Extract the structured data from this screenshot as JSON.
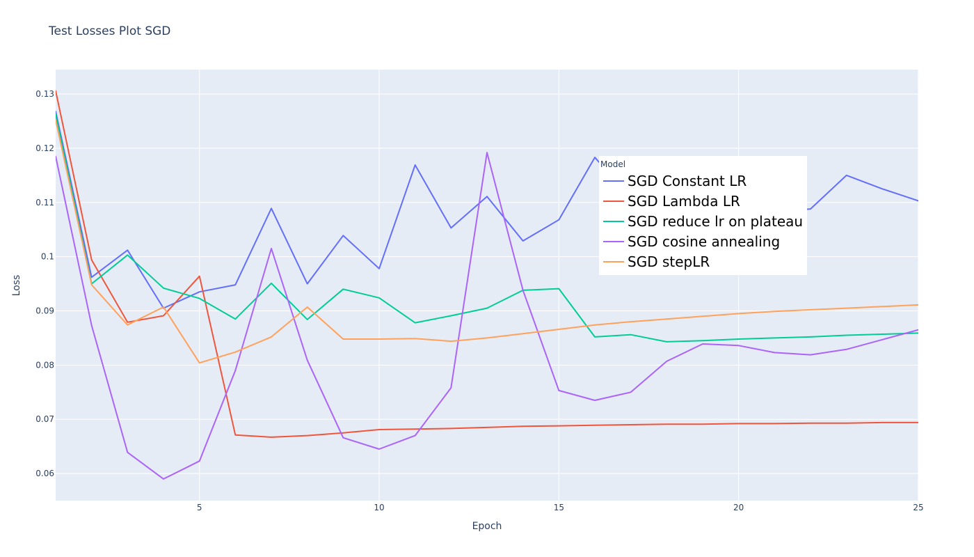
{
  "chart_data": {
    "type": "line",
    "title": "Test Losses Plot SGD",
    "xlabel": "Epoch",
    "ylabel": "Loss",
    "xlim": [
      1,
      25
    ],
    "ylim": [
      0.055,
      0.1345
    ],
    "x_ticks": [
      5,
      10,
      15,
      20,
      25
    ],
    "x_tick_labels": [
      "5",
      "10",
      "15",
      "20",
      "25"
    ],
    "y_ticks": [
      0.06,
      0.07,
      0.08,
      0.09,
      0.1,
      0.11,
      0.12,
      0.13
    ],
    "y_tick_labels": [
      "0.06",
      "0.07",
      "0.08",
      "0.09",
      "0.1",
      "0.11",
      "0.12",
      "0.13"
    ],
    "grid": true,
    "legend_title": "Model",
    "legend_position": "center-right",
    "x": [
      1,
      2,
      3,
      4,
      5,
      6,
      7,
      8,
      9,
      10,
      11,
      12,
      13,
      14,
      15,
      16,
      17,
      18,
      19,
      20,
      21,
      22,
      23,
      24,
      25
    ],
    "series": [
      {
        "name": "SGD Constant LR",
        "color": "#636efa",
        "values": [
          0.1268,
          0.0962,
          0.1012,
          0.0905,
          0.0935,
          0.0948,
          0.1089,
          0.095,
          0.1039,
          0.0978,
          0.1169,
          0.1053,
          0.1111,
          0.1029,
          0.1068,
          0.1183,
          0.1108,
          0.1076,
          0.1091,
          0.1098,
          0.1083,
          0.1088,
          0.115,
          0.1125,
          0.1103
        ]
      },
      {
        "name": "SGD Lambda LR",
        "color": "#ef553b",
        "values": [
          0.1306,
          0.0994,
          0.0879,
          0.0891,
          0.0964,
          0.0671,
          0.0667,
          0.067,
          0.0675,
          0.0681,
          0.0682,
          0.0683,
          0.0685,
          0.0687,
          0.0688,
          0.0689,
          0.069,
          0.0691,
          0.0691,
          0.0692,
          0.0692,
          0.0693,
          0.0693,
          0.0694,
          0.0694
        ]
      },
      {
        "name": "SGD reduce lr on plateau",
        "color": "#00cc96",
        "values": [
          0.1262,
          0.095,
          0.1003,
          0.0942,
          0.0923,
          0.0885,
          0.0951,
          0.0884,
          0.094,
          0.0924,
          0.0878,
          0.0891,
          0.0905,
          0.0938,
          0.0941,
          0.0852,
          0.0856,
          0.0843,
          0.0845,
          0.0848,
          0.085,
          0.0852,
          0.0855,
          0.0857,
          0.0859
        ]
      },
      {
        "name": "SGD cosine annealing",
        "color": "#ab63fa",
        "values": [
          0.1185,
          0.0873,
          0.0639,
          0.059,
          0.0623,
          0.079,
          0.1015,
          0.0809,
          0.0666,
          0.0645,
          0.067,
          0.0758,
          0.1192,
          0.0938,
          0.0753,
          0.0735,
          0.075,
          0.0807,
          0.0839,
          0.0836,
          0.0823,
          0.0819,
          0.0829,
          0.0847,
          0.0865
        ]
      },
      {
        "name": "SGD stepLR",
        "color": "#ffa15a",
        "values": [
          0.1252,
          0.0948,
          0.0874,
          0.0907,
          0.0804,
          0.0824,
          0.0852,
          0.0907,
          0.0848,
          0.0848,
          0.0849,
          0.0844,
          0.085,
          0.0858,
          0.0866,
          0.0874,
          0.088,
          0.0885,
          0.089,
          0.0895,
          0.0899,
          0.0902,
          0.0905,
          0.0908,
          0.0911
        ]
      }
    ]
  }
}
